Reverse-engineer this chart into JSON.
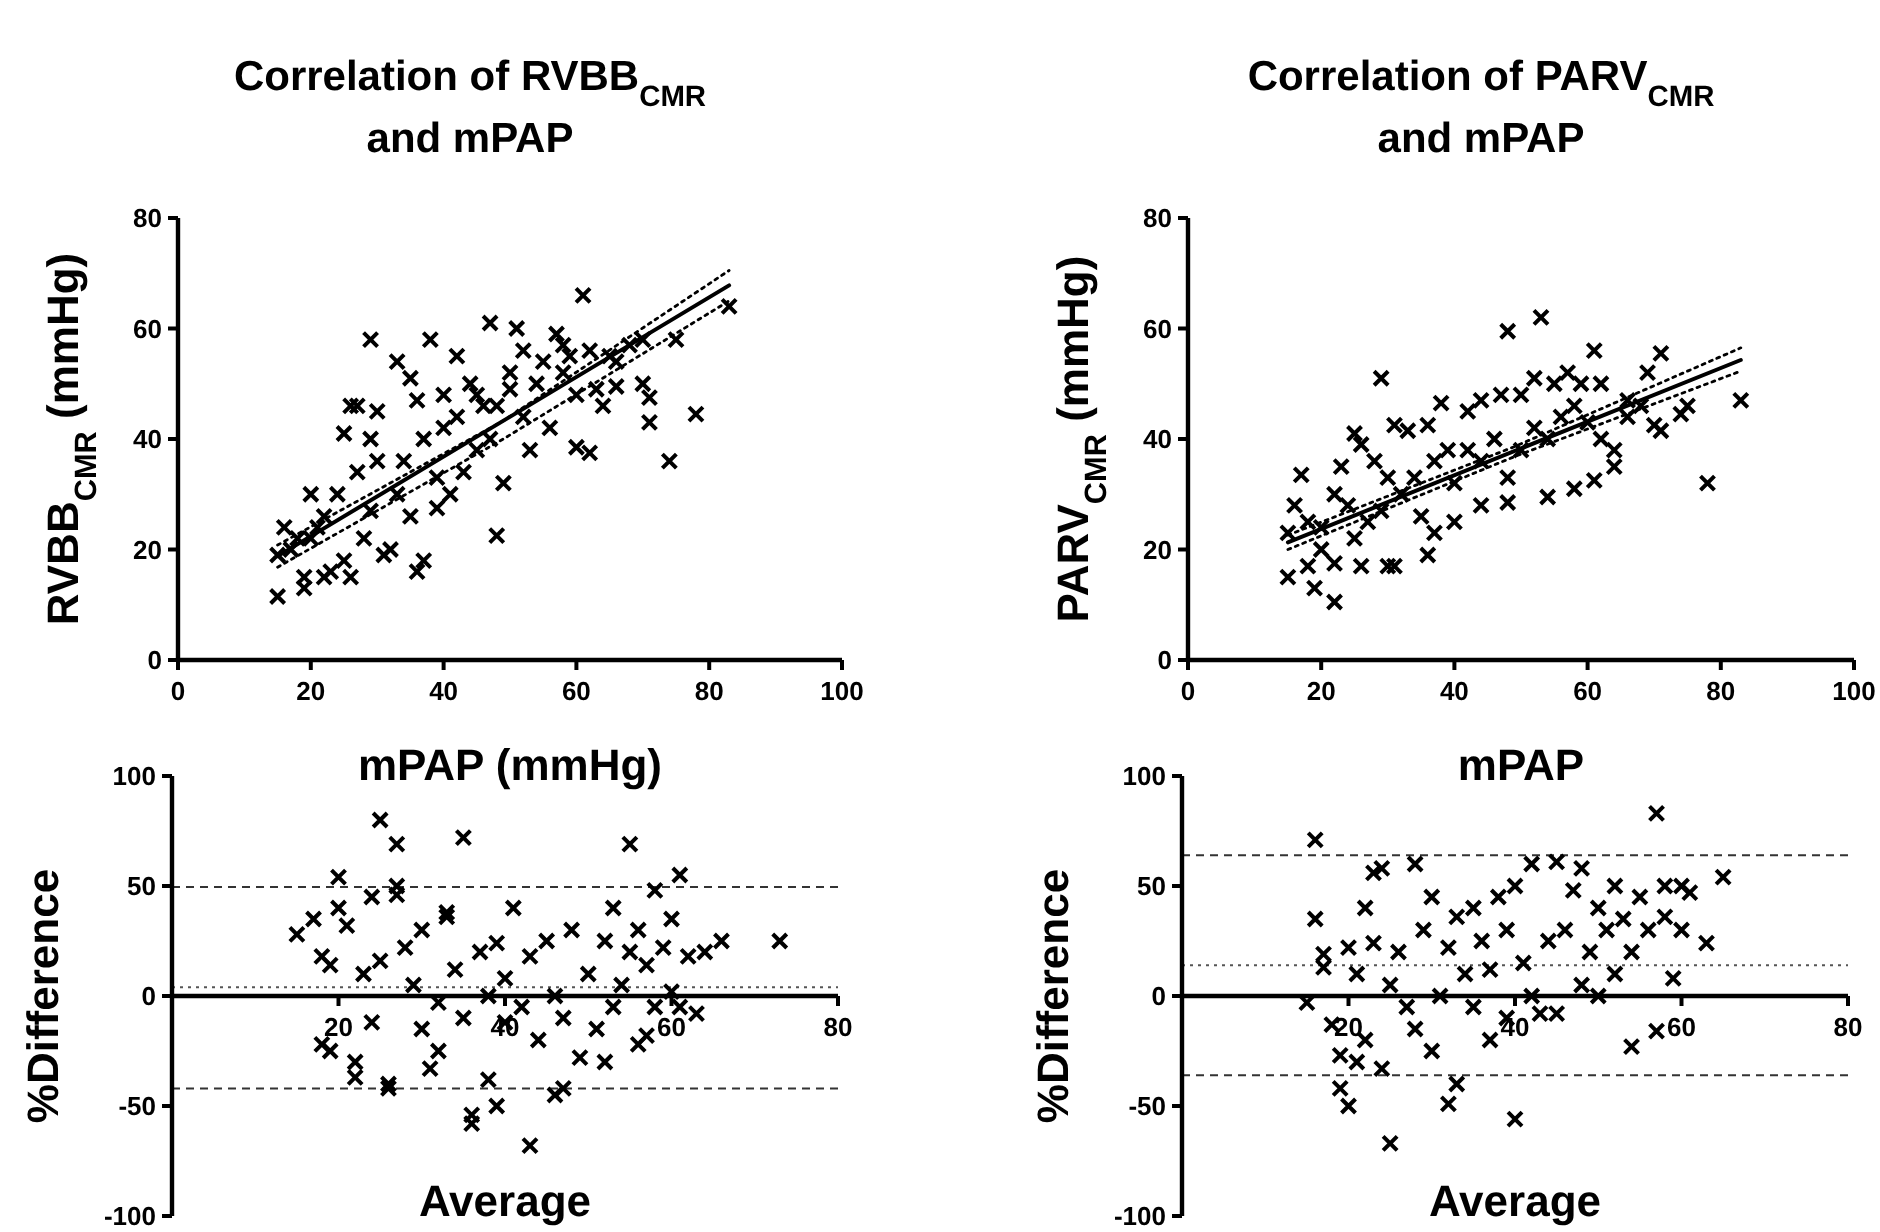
{
  "chart_data": [
    {
      "type": "scatter",
      "title": "Correlation of RVBB$_{CMR}$ and mPAP",
      "xlabel": "mPAP (mmHg)",
      "ylabel": "RVBB$_{CMR}$ (mmHg)",
      "xlim": [
        0,
        100
      ],
      "xticks": [
        0,
        20,
        40,
        60,
        80,
        100
      ],
      "ylim": [
        0,
        80
      ],
      "yticks": [
        0,
        20,
        40,
        60,
        80
      ],
      "marker": "cross",
      "series": [
        {
          "color": "#000000",
          "x": [
            15,
            15,
            19,
            19,
            20,
            29,
            33,
            38,
            48,
            49,
            36,
            37,
            31,
            32,
            61,
            74,
            78,
            83,
            75,
            71,
            71,
            70,
            62,
            60,
            47,
            51,
            58,
            65,
            68,
            25,
            26,
            27,
            30,
            29,
            35,
            36,
            40,
            42,
            44,
            46,
            50,
            52,
            55,
            57,
            59,
            63,
            64,
            66,
            56,
            53,
            45,
            43,
            39,
            39,
            41,
            35,
            33,
            29,
            28,
            25,
            23,
            22,
            26,
            18,
            17,
            21,
            24,
            27,
            30,
            34,
            37,
            40,
            42,
            48,
            50,
            54,
            58,
            60,
            62,
            66,
            70,
            16,
            20,
            22,
            45,
            47,
            52
          ],
          "values": [
            11.5,
            19,
            13,
            15,
            30,
            58,
            54,
            58,
            22.5,
            32,
            16,
            18,
            19,
            20,
            66,
            36,
            44.5,
            64,
            58,
            43,
            47.5,
            50,
            37.5,
            38.5,
            61,
            60,
            57,
            55,
            57,
            41,
            46,
            46,
            45,
            40,
            51,
            47,
            48,
            55,
            50,
            46,
            52,
            44,
            54,
            59,
            55,
            49,
            46,
            49.5,
            42,
            38,
            38,
            34,
            33,
            27.5,
            30,
            26,
            30,
            27,
            22,
            18,
            16,
            15,
            15,
            22,
            20,
            24,
            30,
            34,
            36,
            36,
            40,
            42,
            44,
            46,
            49,
            50,
            52,
            48,
            56,
            54,
            58,
            24,
            22,
            26,
            48,
            40,
            56
          ]
        },
        {
          "type": "line",
          "marker": "none",
          "color": "#000000",
          "line_style": "solid",
          "x": [
            15,
            83
          ],
          "values": [
            18.8,
            67.8
          ]
        },
        {
          "type": "line",
          "marker": "none",
          "color": "#000000",
          "line_style": "dotted",
          "x": [
            15,
            49,
            83
          ],
          "values": [
            20.8,
            43.3,
            70.5
          ]
        },
        {
          "type": "line",
          "marker": "none",
          "color": "#000000",
          "line_style": "dotted",
          "x": [
            15,
            49,
            83
          ],
          "values": [
            16.8,
            40.0,
            65
          ]
        }
      ]
    },
    {
      "type": "scatter",
      "title": "Correlation of PARV$_{CMR}$ and mPAP",
      "xlabel": "mPAP",
      "ylabel": "PARV$_{CMR}$ (mmHg)",
      "xlim": [
        0,
        100
      ],
      "xticks": [
        0,
        20,
        40,
        60,
        80,
        100
      ],
      "ylim": [
        0,
        80
      ],
      "yticks": [
        0,
        20,
        40,
        60,
        80
      ],
      "marker": "cross",
      "series": [
        {
          "color": "#000000",
          "x": [
            15,
            15,
            17,
            19,
            18,
            22,
            22,
            26,
            30,
            31,
            29,
            36,
            48,
            53,
            61,
            71,
            78,
            83,
            75,
            74,
            71,
            69,
            64,
            61,
            58,
            54,
            48,
            44,
            40,
            37,
            25,
            26,
            28,
            31,
            33,
            36,
            38,
            42,
            44,
            47,
            50,
            52,
            55,
            57,
            59,
            62,
            66,
            68,
            16,
            18,
            20,
            22,
            24,
            25,
            27,
            29,
            30,
            32,
            34,
            35,
            37,
            39,
            40,
            42,
            44,
            46,
            48,
            50,
            52,
            54,
            56,
            58,
            60,
            62,
            64,
            66,
            20,
            23,
            70
          ],
          "values": [
            15,
            23,
            33.5,
            13,
            17,
            10.5,
            17.5,
            17,
            17,
            17,
            51,
            19,
            59.5,
            62,
            56,
            55.5,
            32,
            47,
            46,
            44.5,
            41.5,
            52,
            35,
            32.5,
            31,
            29.5,
            28.5,
            28,
            25,
            23,
            41,
            39,
            36,
            42.5,
            41.5,
            42.5,
            46.5,
            45,
            47,
            48,
            48,
            51,
            50,
            52,
            50,
            50,
            47,
            46,
            28,
            25,
            24,
            30,
            28,
            22,
            25,
            27,
            33,
            30,
            33,
            26,
            36,
            38,
            32,
            38,
            36,
            40,
            33,
            38,
            42,
            40,
            44,
            46,
            43,
            40,
            38,
            44,
            20,
            35,
            42.5
          ]
        },
        {
          "type": "line",
          "marker": "none",
          "color": "#000000",
          "line_style": "solid",
          "x": [
            15,
            83
          ],
          "values": [
            21.3,
            54.3
          ]
        },
        {
          "type": "line",
          "marker": "none",
          "color": "#000000",
          "line_style": "dotted",
          "x": [
            15,
            49,
            83
          ],
          "values": [
            22.6,
            38.6,
            56.5
          ]
        },
        {
          "type": "line",
          "marker": "none",
          "color": "#000000",
          "line_style": "dotted",
          "x": [
            15,
            49,
            83
          ],
          "values": [
            20.0,
            36.8,
            52.3
          ]
        }
      ]
    },
    {
      "type": "scatter",
      "xlabel": "Average",
      "ylabel": "%Difference",
      "xlim": [
        0,
        80
      ],
      "xticks": [
        20,
        40,
        60,
        80
      ],
      "ylim": [
        -100,
        100
      ],
      "yticks": [
        -100,
        -50,
        0,
        50,
        100
      ],
      "marker": "cross",
      "ref_lines": [
        {
          "axis": "y",
          "value": 49.5,
          "color": "#333333",
          "line_style": "dashed"
        },
        {
          "axis": "y",
          "value": 4,
          "color": "#555555",
          "line_style": "dotted"
        },
        {
          "axis": "y",
          "value": -42,
          "color": "#333333",
          "line_style": "dashed"
        }
      ],
      "series": [
        {
          "color": "#000000",
          "x": [
            15,
            17,
            18,
            19,
            18,
            19,
            20,
            21,
            20,
            22,
            22,
            23,
            24,
            24,
            25,
            25,
            26,
            27,
            26,
            27,
            27,
            28,
            29,
            30,
            30,
            31,
            32,
            33,
            33,
            34,
            35,
            35,
            36,
            36,
            37,
            38,
            38,
            39,
            39,
            40,
            41,
            42,
            43,
            43,
            44,
            45,
            46,
            47,
            47,
            48,
            49,
            50,
            51,
            52,
            52,
            53,
            54,
            55,
            55,
            56,
            56,
            57,
            58,
            58,
            59,
            60,
            60,
            61,
            61,
            62,
            63,
            64,
            66,
            73,
            32,
            46,
            53,
            57,
            40
          ],
          "values": [
            28,
            35,
            18,
            14,
            -22,
            -25,
            40,
            32,
            54,
            -30,
            -37,
            10,
            45,
            -12,
            16,
            80,
            -40,
            69,
            -42,
            50,
            46,
            22,
            5,
            -15,
            30,
            -33,
            -25,
            38,
            36,
            12,
            72,
            -10,
            -54,
            -58,
            20,
            0,
            -38,
            -50,
            24,
            -12,
            40,
            -5,
            -68,
            18,
            -20,
            25,
            -45,
            -42,
            -10,
            30,
            -28,
            10,
            -15,
            -30,
            25,
            40,
            5,
            69,
            20,
            -22,
            30,
            14,
            -5,
            48,
            22,
            2,
            35,
            55,
            -5,
            18,
            -8,
            20,
            25,
            25,
            -3,
            0,
            -5,
            -18,
            8
          ]
        }
      ]
    },
    {
      "type": "scatter",
      "xlabel": "Average",
      "ylabel": "%Difference",
      "xlim": [
        0,
        80
      ],
      "xticks": [
        20,
        40,
        60,
        80
      ],
      "ylim": [
        -100,
        100
      ],
      "yticks": [
        -100,
        -50,
        0,
        50,
        100
      ],
      "marker": "cross",
      "ref_lines": [
        {
          "axis": "y",
          "value": 64,
          "color": "#333333",
          "line_style": "dashed"
        },
        {
          "axis": "y",
          "value": 14,
          "color": "#555555",
          "line_style": "dotted"
        },
        {
          "axis": "y",
          "value": -36,
          "color": "#333333",
          "line_style": "dashed"
        }
      ],
      "series": [
        {
          "color": "#000000",
          "x": [
            15,
            16,
            16,
            17,
            17,
            18,
            19,
            19,
            20,
            20,
            21,
            21,
            22,
            22,
            23,
            23,
            24,
            24,
            25,
            25,
            26,
            27,
            28,
            28,
            29,
            30,
            30,
            31,
            32,
            32,
            33,
            33,
            34,
            35,
            35,
            36,
            37,
            37,
            38,
            39,
            39,
            40,
            40,
            41,
            42,
            42,
            43,
            44,
            45,
            45,
            46,
            47,
            48,
            48,
            49,
            50,
            50,
            51,
            52,
            52,
            53,
            54,
            54,
            55,
            56,
            57,
            57,
            58,
            58,
            59,
            60,
            60,
            61,
            63,
            65
          ],
          "values": [
            -3,
            71,
            35,
            19,
            13,
            -13,
            -27,
            -42,
            -50,
            22,
            10,
            -30,
            40,
            -20,
            24,
            56,
            -33,
            58,
            -67,
            5,
            20,
            -5,
            -15,
            60,
            30,
            -25,
            45,
            0,
            22,
            -49,
            -40,
            36,
            10,
            -5,
            40,
            25,
            -20,
            12,
            45,
            -10,
            30,
            -56,
            50,
            15,
            60,
            0,
            -8,
            25,
            61,
            -8,
            30,
            48,
            5,
            58,
            20,
            40,
            0,
            30,
            10,
            50,
            35,
            20,
            -23,
            45,
            30,
            83,
            -16,
            50,
            36,
            8,
            50,
            30,
            47,
            24,
            54
          ]
        }
      ]
    }
  ]
}
